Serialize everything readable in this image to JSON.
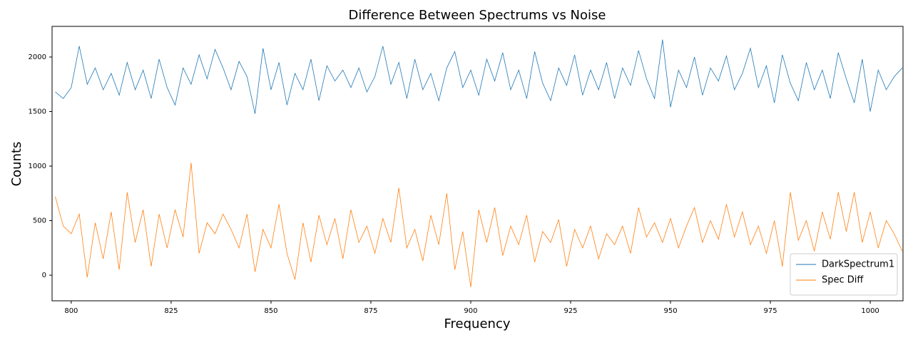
{
  "chart_data": {
    "type": "line",
    "title": "Difference Between Spectrums vs Noise",
    "x_label": "Frequency",
    "y_label": "Counts",
    "x": [
      796,
      798,
      800,
      802,
      804,
      806,
      808,
      810,
      812,
      814,
      816,
      818,
      820,
      822,
      824,
      826,
      828,
      830,
      832,
      834,
      836,
      838,
      840,
      842,
      844,
      846,
      848,
      850,
      852,
      854,
      856,
      858,
      860,
      862,
      864,
      866,
      868,
      870,
      872,
      874,
      876,
      878,
      880,
      882,
      884,
      886,
      888,
      890,
      892,
      894,
      896,
      898,
      900,
      902,
      904,
      906,
      908,
      910,
      912,
      914,
      916,
      918,
      920,
      922,
      924,
      926,
      928,
      930,
      932,
      934,
      936,
      938,
      940,
      942,
      944,
      946,
      948,
      950,
      952,
      954,
      956,
      958,
      960,
      962,
      964,
      966,
      968,
      970,
      972,
      974,
      976,
      978,
      980,
      982,
      984,
      986,
      988,
      990,
      992,
      994,
      996,
      998,
      1000,
      1002,
      1004,
      1006,
      1008
    ],
    "series": [
      {
        "name": "DarkSpectrum1",
        "color": "#1f77b4",
        "values": [
          1680,
          1620,
          1720,
          2100,
          1750,
          1900,
          1700,
          1850,
          1650,
          1950,
          1700,
          1880,
          1620,
          1980,
          1720,
          1560,
          1900,
          1750,
          2020,
          1800,
          2070,
          1900,
          1700,
          1960,
          1820,
          1480,
          2080,
          1700,
          1950,
          1560,
          1850,
          1700,
          1980,
          1600,
          1920,
          1780,
          1880,
          1720,
          1900,
          1680,
          1820,
          2100,
          1750,
          1950,
          1620,
          1980,
          1700,
          1850,
          1600,
          1900,
          2050,
          1720,
          1880,
          1650,
          1980,
          1780,
          2040,
          1700,
          1880,
          1620,
          2050,
          1760,
          1600,
          1900,
          1740,
          2020,
          1650,
          1880,
          1700,
          1950,
          1620,
          1900,
          1740,
          2060,
          1800,
          1620,
          2160,
          1540,
          1880,
          1720,
          2000,
          1650,
          1900,
          1780,
          2010,
          1700,
          1850,
          2080,
          1720,
          1920,
          1580,
          2020,
          1760,
          1600,
          1950,
          1700,
          1880,
          1620,
          2040,
          1800,
          1580,
          1980,
          1500,
          1880,
          1700,
          1820,
          1900
        ]
      },
      {
        "name": "Spec Diff",
        "color": "#ff7f0e",
        "values": [
          720,
          450,
          380,
          560,
          -20,
          480,
          150,
          580,
          50,
          760,
          300,
          600,
          80,
          560,
          250,
          600,
          350,
          1030,
          200,
          480,
          380,
          560,
          420,
          250,
          560,
          30,
          420,
          250,
          650,
          200,
          -40,
          480,
          120,
          550,
          280,
          520,
          150,
          600,
          300,
          450,
          200,
          520,
          300,
          800,
          250,
          420,
          130,
          550,
          280,
          750,
          50,
          400,
          -110,
          600,
          300,
          620,
          180,
          450,
          280,
          550,
          120,
          400,
          300,
          510,
          80,
          420,
          250,
          450,
          150,
          380,
          280,
          450,
          200,
          620,
          350,
          480,
          300,
          520,
          250,
          450,
          620,
          300,
          500,
          330,
          650,
          350,
          580,
          280,
          450,
          200,
          500,
          80,
          760,
          320,
          500,
          220,
          580,
          330,
          760,
          400,
          760,
          300,
          580,
          250,
          500,
          380,
          220
        ]
      }
    ],
    "xlim": [
      795.2,
      1008.2
    ],
    "ylim": [
      -235,
      2281
    ],
    "xticks": [
      800,
      825,
      850,
      875,
      900,
      925,
      950,
      975,
      1000
    ],
    "yticks": [
      0,
      500,
      1000,
      1500,
      2000
    ],
    "legend": "lower right"
  }
}
